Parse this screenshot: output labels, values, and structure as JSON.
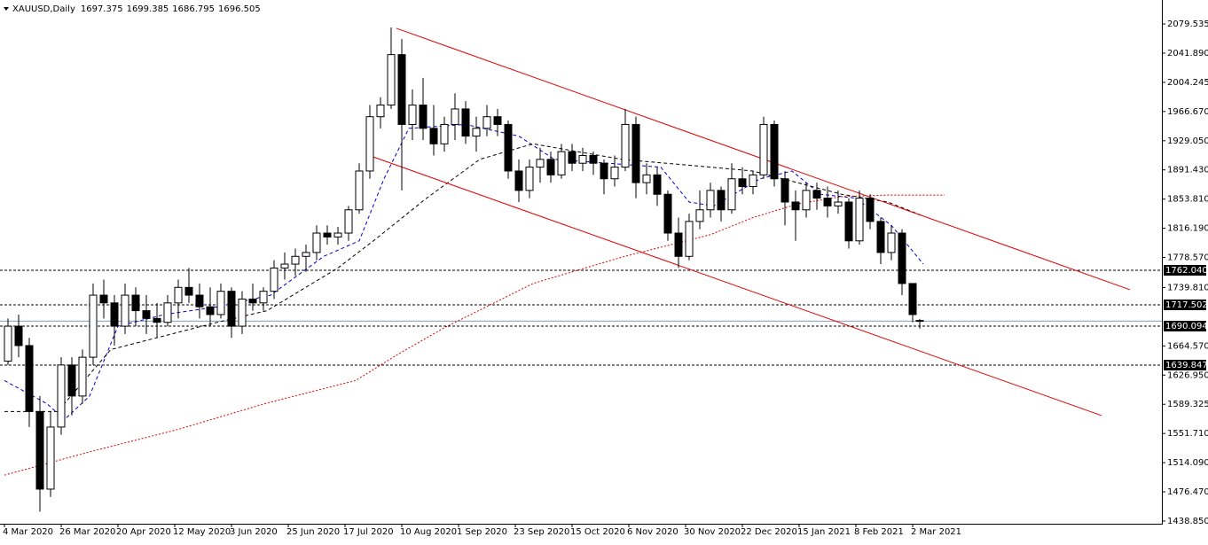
{
  "chart_data": {
    "type": "candlestick",
    "symbol": "XAUUSD,Daily",
    "x": [
      1,
      4,
      7,
      10,
      13,
      16,
      19,
      22,
      25,
      28,
      31,
      34,
      37,
      40,
      43,
      46,
      49,
      52,
      55,
      58,
      61,
      64,
      67,
      70,
      73,
      76,
      79,
      82,
      85,
      88,
      91,
      94,
      97,
      100,
      103,
      106,
      109,
      112,
      115,
      118,
      121,
      124,
      127,
      130,
      133,
      136,
      139,
      142,
      145,
      148,
      151,
      154,
      157,
      160,
      163,
      166,
      169,
      172,
      175,
      178,
      181,
      184,
      187,
      190,
      193,
      196,
      199,
      202,
      205,
      208,
      211,
      214,
      217,
      220,
      223,
      226,
      229,
      232,
      235,
      238,
      241,
      244,
      247,
      250,
      253,
      256,
      258
    ],
    "open": [
      1645,
      1690,
      1665,
      1580,
      1480,
      1560,
      1640,
      1600,
      1650,
      1730,
      1720,
      1690,
      1730,
      1710,
      1700,
      1695,
      1720,
      1740,
      1730,
      1715,
      1705,
      1735,
      1690,
      1725,
      1720,
      1735,
      1765,
      1770,
      1780,
      1785,
      1810,
      1805,
      1810,
      1840,
      1890,
      1960,
      1975,
      2040,
      1950,
      1975,
      1945,
      1925,
      1950,
      1970,
      1935,
      1945,
      1960,
      1950,
      1890,
      1865,
      1895,
      1905,
      1885,
      1915,
      1900,
      1910,
      1900,
      1880,
      1895,
      1950,
      1875,
      1885,
      1860,
      1810,
      1780,
      1825,
      1840,
      1865,
      1840,
      1880,
      1870,
      1885,
      1950,
      1880,
      1850,
      1840,
      1865,
      1855,
      1845,
      1850,
      1800,
      1855,
      1825,
      1785,
      1810,
      1745,
      1697.375
    ],
    "high": [
      1700,
      1705,
      1675,
      1600,
      1580,
      1650,
      1650,
      1660,
      1745,
      1750,
      1730,
      1745,
      1740,
      1730,
      1720,
      1730,
      1750,
      1765,
      1745,
      1740,
      1745,
      1740,
      1735,
      1745,
      1740,
      1775,
      1785,
      1790,
      1795,
      1820,
      1820,
      1818,
      1845,
      1900,
      1975,
      1985,
      2075,
      2060,
      1995,
      2010,
      1975,
      1960,
      1990,
      1980,
      1960,
      1975,
      1970,
      1955,
      1905,
      1905,
      1920,
      1915,
      1925,
      1925,
      1920,
      1915,
      1905,
      1910,
      1970,
      1960,
      1900,
      1895,
      1865,
      1830,
      1835,
      1865,
      1875,
      1870,
      1900,
      1895,
      1890,
      1960,
      1955,
      1890,
      1865,
      1875,
      1875,
      1870,
      1865,
      1855,
      1865,
      1860,
      1830,
      1820,
      1815,
      1745,
      1699.385
    ],
    "low": [
      1640,
      1650,
      1560,
      1451,
      1470,
      1550,
      1575,
      1590,
      1640,
      1700,
      1665,
      1680,
      1690,
      1680,
      1675,
      1690,
      1700,
      1720,
      1700,
      1690,
      1700,
      1675,
      1680,
      1710,
      1710,
      1725,
      1750,
      1755,
      1760,
      1775,
      1795,
      1795,
      1800,
      1835,
      1880,
      1945,
      1970,
      1865,
      1930,
      1930,
      1910,
      1915,
      1930,
      1925,
      1915,
      1935,
      1935,
      1880,
      1850,
      1855,
      1875,
      1875,
      1880,
      1890,
      1890,
      1885,
      1860,
      1870,
      1890,
      1855,
      1860,
      1845,
      1800,
      1765,
      1775,
      1815,
      1830,
      1825,
      1835,
      1860,
      1860,
      1880,
      1870,
      1820,
      1800,
      1830,
      1840,
      1830,
      1835,
      1790,
      1795,
      1815,
      1770,
      1775,
      1730,
      1695,
      1686.795
    ],
    "close": [
      1690,
      1665,
      1580,
      1480,
      1560,
      1640,
      1600,
      1650,
      1730,
      1720,
      1690,
      1730,
      1710,
      1700,
      1695,
      1720,
      1740,
      1730,
      1715,
      1705,
      1735,
      1690,
      1725,
      1720,
      1735,
      1765,
      1770,
      1780,
      1785,
      1810,
      1805,
      1810,
      1840,
      1890,
      1960,
      1975,
      2040,
      1950,
      1975,
      1945,
      1925,
      1950,
      1970,
      1935,
      1945,
      1960,
      1950,
      1890,
      1865,
      1895,
      1905,
      1885,
      1915,
      1900,
      1910,
      1900,
      1880,
      1895,
      1950,
      1875,
      1885,
      1860,
      1810,
      1780,
      1825,
      1840,
      1865,
      1840,
      1880,
      1870,
      1885,
      1950,
      1880,
      1850,
      1840,
      1865,
      1855,
      1845,
      1850,
      1800,
      1855,
      1825,
      1785,
      1810,
      1745,
      1705,
      1696.505
    ],
    "moving_averages": [
      {
        "color": "#0000cc",
        "x": [
          0,
          12,
          17,
          24,
          32,
          45,
          60,
          75,
          90,
          100,
          107,
          114,
          130,
          145,
          155,
          170,
          185,
          193,
          200,
          213,
          222,
          230,
          240,
          250,
          259
        ],
        "values": [
          1620,
          1590,
          1570,
          1600,
          1690,
          1705,
          1715,
          1730,
          1780,
          1800,
          1880,
          1945,
          1950,
          1935,
          1905,
          1900,
          1895,
          1850,
          1845,
          1880,
          1890,
          1860,
          1855,
          1820,
          1770
        ]
      },
      {
        "color": "#000000",
        "x": [
          0,
          15,
          30,
          60,
          74,
          94,
          104,
          119,
          134,
          149,
          174,
          199,
          211,
          236,
          249,
          259
        ],
        "values": [
          1580,
          1580,
          1660,
          1695,
          1710,
          1765,
          1800,
          1855,
          1905,
          1925,
          1905,
          1895,
          1890,
          1860,
          1850,
          1832
        ]
      },
      {
        "color": "#dd0000",
        "x": [
          0,
          24,
          49,
          74,
          99,
          111,
          124,
          149,
          174,
          199,
          211,
          224,
          236,
          249,
          265
        ],
        "values": [
          1498,
          1528,
          1557,
          1591,
          1620,
          1654,
          1688,
          1745,
          1779,
          1808,
          1830,
          1848,
          1857,
          1859,
          1859
        ]
      }
    ],
    "channel_lines": [
      {
        "color": "#e00000",
        "x": [
          110.5,
          317.25
        ],
        "values": [
          2073.9,
          1737.0
        ]
      },
      {
        "color": "#e00000",
        "x": [
          102.5,
          309.25
        ],
        "values": [
          1910.5,
          1574.8
        ]
      }
    ],
    "levels": [
      {
        "value": 1762.04,
        "label": "1762.040"
      },
      {
        "value": 1717.502,
        "label": "1717.502"
      },
      {
        "value": 1690.094,
        "label": "1690.094"
      },
      {
        "value": 1639.847,
        "label": "1639.847"
      }
    ],
    "xlim": [
      -1.25,
      326.25
    ],
    "ylim": [
      1435.4,
      2110.4
    ],
    "xticks": [
      {
        "value": 0,
        "label": "4 Mar 2020"
      },
      {
        "value": 16,
        "label": "26 Mar 2020"
      },
      {
        "value": 32,
        "label": "20 Apr 2020"
      },
      {
        "value": 48,
        "label": "12 May 2020"
      },
      {
        "value": 64,
        "label": "3 Jun 2020"
      },
      {
        "value": 80,
        "label": "25 Jun 2020"
      },
      {
        "value": 96,
        "label": "17 Jul 2020"
      },
      {
        "value": 112,
        "label": "10 Aug 2020"
      },
      {
        "value": 128,
        "label": "1 Sep 2020"
      },
      {
        "value": 144,
        "label": "23 Sep 2020"
      },
      {
        "value": 160,
        "label": "15 Oct 2020"
      },
      {
        "value": 176,
        "label": "6 Nov 2020"
      },
      {
        "value": 192,
        "label": "30 Nov 2020"
      },
      {
        "value": 208,
        "label": "22 Dec 2020"
      },
      {
        "value": 224,
        "label": "15 Jan 2021"
      },
      {
        "value": 240,
        "label": "8 Feb 2021"
      },
      {
        "value": 256,
        "label": "2 Mar 2021"
      }
    ],
    "yticks": [
      {
        "value": 2079.535,
        "label": "2079.535"
      },
      {
        "value": 2041.89,
        "label": "2041.890"
      },
      {
        "value": 2004.245,
        "label": "2004.245"
      },
      {
        "value": 1966.67,
        "label": "1966.670"
      },
      {
        "value": 1929.05,
        "label": "1929.050"
      },
      {
        "value": 1891.43,
        "label": "1891.430"
      },
      {
        "value": 1853.81,
        "label": "1853.810"
      },
      {
        "value": 1816.19,
        "label": "1816.190"
      },
      {
        "value": 1778.57,
        "label": "1778.570"
      },
      {
        "value": 1739.81,
        "label": "1739.810"
      },
      {
        "value": 1664.57,
        "label": "1664.570"
      },
      {
        "value": 1626.95,
        "label": "1626.950"
      },
      {
        "value": 1589.325,
        "label": "1589.325"
      },
      {
        "value": 1551.71,
        "label": "1551.710"
      },
      {
        "value": 1514.09,
        "label": "1514.090"
      },
      {
        "value": 1476.47,
        "label": "1476.470"
      },
      {
        "value": 1438.85,
        "label": "1438.850"
      }
    ]
  }
}
